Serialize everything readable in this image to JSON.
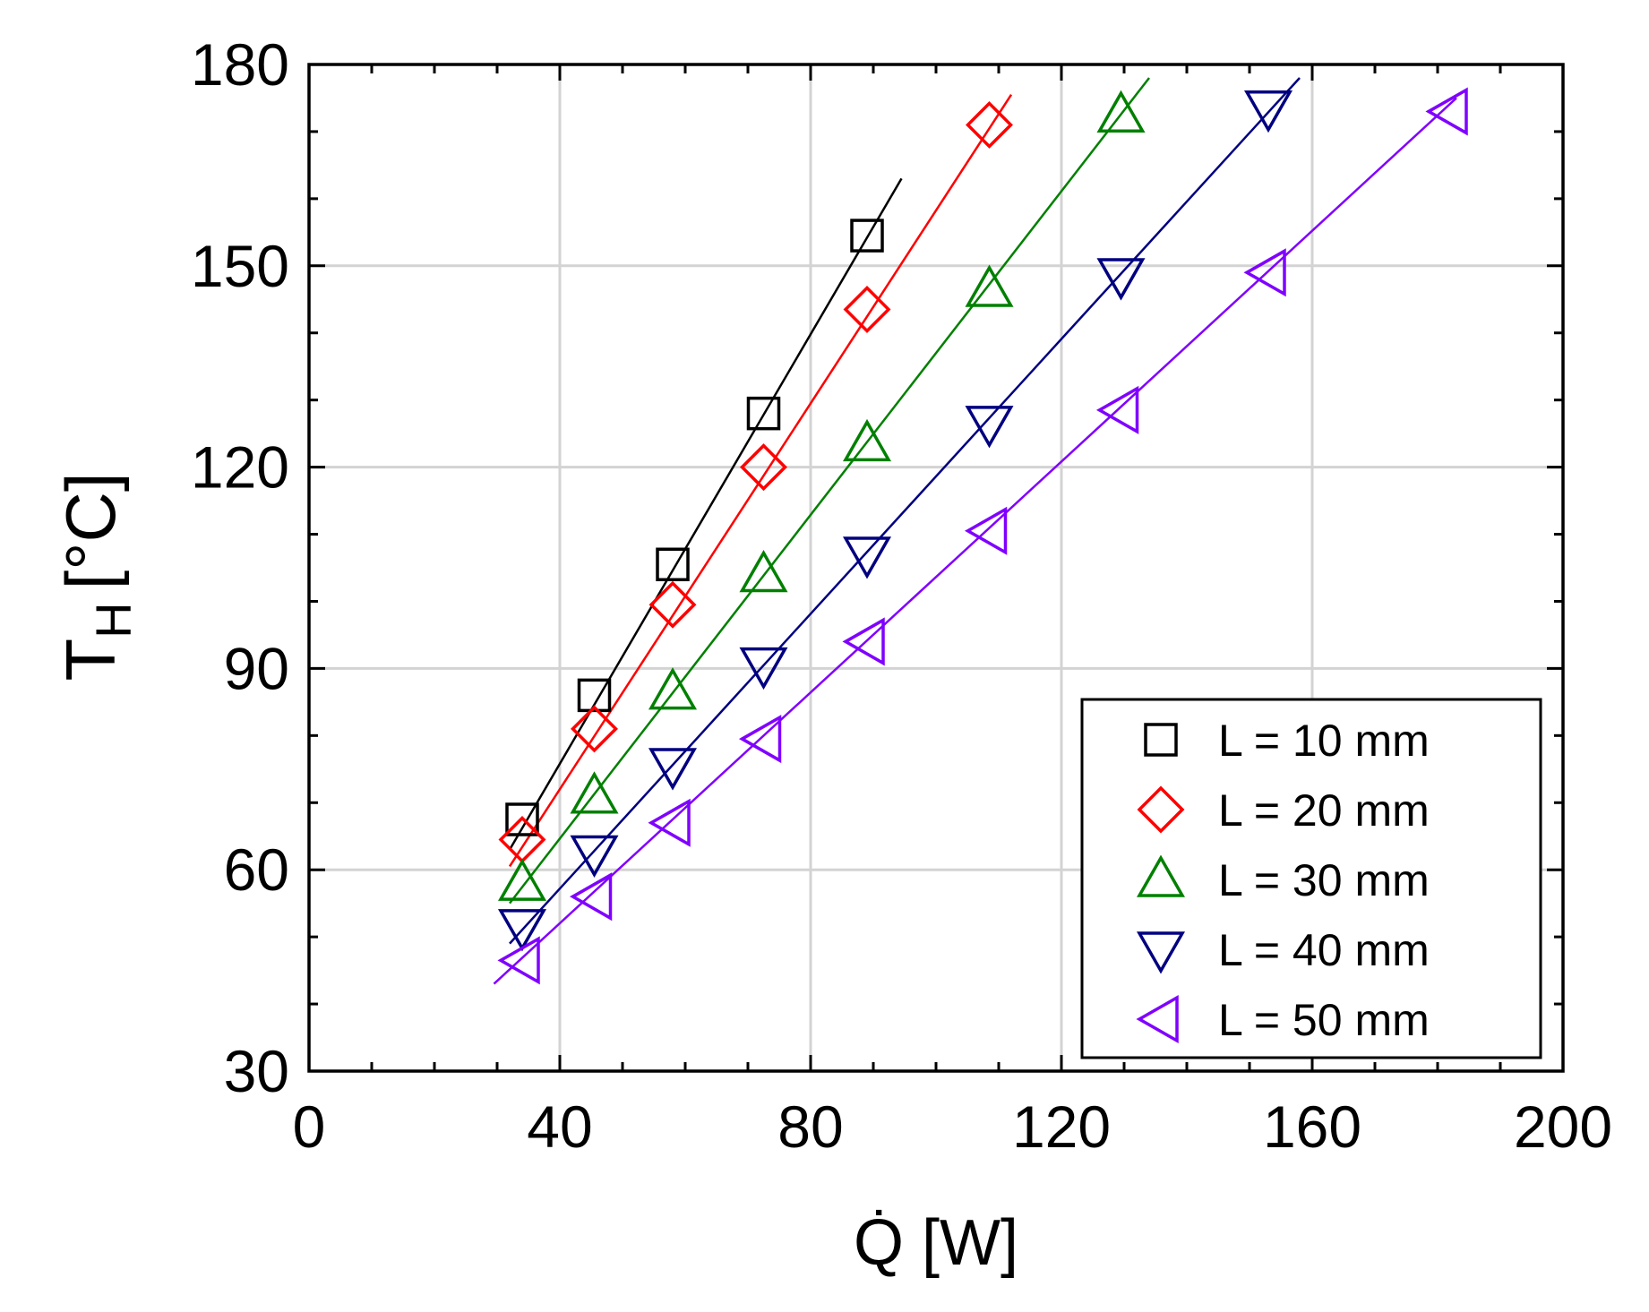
{
  "chart_data": {
    "type": "scatter",
    "title": "",
    "xlabel": "Q̇ [W]",
    "ylabel_main": "T",
    "ylabel_sub": "H",
    "ylabel_unit": "[°C]",
    "xlim": [
      0,
      200
    ],
    "ylim": [
      30,
      180
    ],
    "xticks": [
      0,
      40,
      80,
      120,
      160,
      200
    ],
    "yticks": [
      30,
      60,
      90,
      120,
      150,
      180
    ],
    "xticks_minor": [
      10,
      20,
      30,
      50,
      60,
      70,
      90,
      100,
      110,
      130,
      140,
      150,
      170,
      180,
      190
    ],
    "yticks_minor": [
      40,
      50,
      70,
      80,
      100,
      110,
      130,
      140,
      160,
      170
    ],
    "grid": true,
    "legend_position": "bottom-right",
    "series": [
      {
        "name": "L = 10 mm",
        "marker": "square",
        "color": "#000000",
        "x": [
          34,
          45.5,
          58,
          72.5,
          89
        ],
        "y": [
          67.5,
          86,
          105.5,
          128,
          154.5
        ],
        "fit": {
          "x": [
            32,
            94.5
          ],
          "y": [
            63,
            163
          ]
        }
      },
      {
        "name": "L = 20 mm",
        "marker": "diamond",
        "color": "#ff0000",
        "x": [
          34,
          45.5,
          58,
          72.5,
          89,
          108.5
        ],
        "y": [
          64.5,
          81,
          99.5,
          120,
          143.5,
          171
        ],
        "fit": {
          "x": [
            32,
            112
          ],
          "y": [
            60.5,
            175.5
          ]
        }
      },
      {
        "name": "L = 30 mm",
        "marker": "triangle-up",
        "color": "#008000",
        "x": [
          34,
          45.5,
          58,
          72.5,
          89,
          108.5,
          129.5
        ],
        "y": [
          58,
          71,
          86.5,
          104,
          123.5,
          146.5,
          172.5
        ],
        "fit": {
          "x": [
            32,
            134
          ],
          "y": [
            55,
            178
          ]
        }
      },
      {
        "name": "L = 40 mm",
        "marker": "triangle-down",
        "color": "#000080",
        "x": [
          34,
          45.5,
          58,
          72.5,
          89,
          108.5,
          129.5,
          153
        ],
        "y": [
          51.5,
          62.5,
          75.5,
          90.5,
          107,
          126.5,
          148.5,
          173.5
        ],
        "fit": {
          "x": [
            32,
            158
          ],
          "y": [
            49,
            178
          ]
        }
      },
      {
        "name": "L = 50 mm",
        "marker": "triangle-left",
        "color": "#8000ff",
        "x": [
          34,
          45.5,
          58,
          72.5,
          89,
          108.5,
          129.5,
          153,
          182
        ],
        "y": [
          46.5,
          56,
          67,
          79.5,
          94,
          110.5,
          128.5,
          149,
          173
        ],
        "fit": {
          "x": [
            29.5,
            183
          ],
          "y": [
            43,
            175
          ]
        }
      }
    ]
  }
}
